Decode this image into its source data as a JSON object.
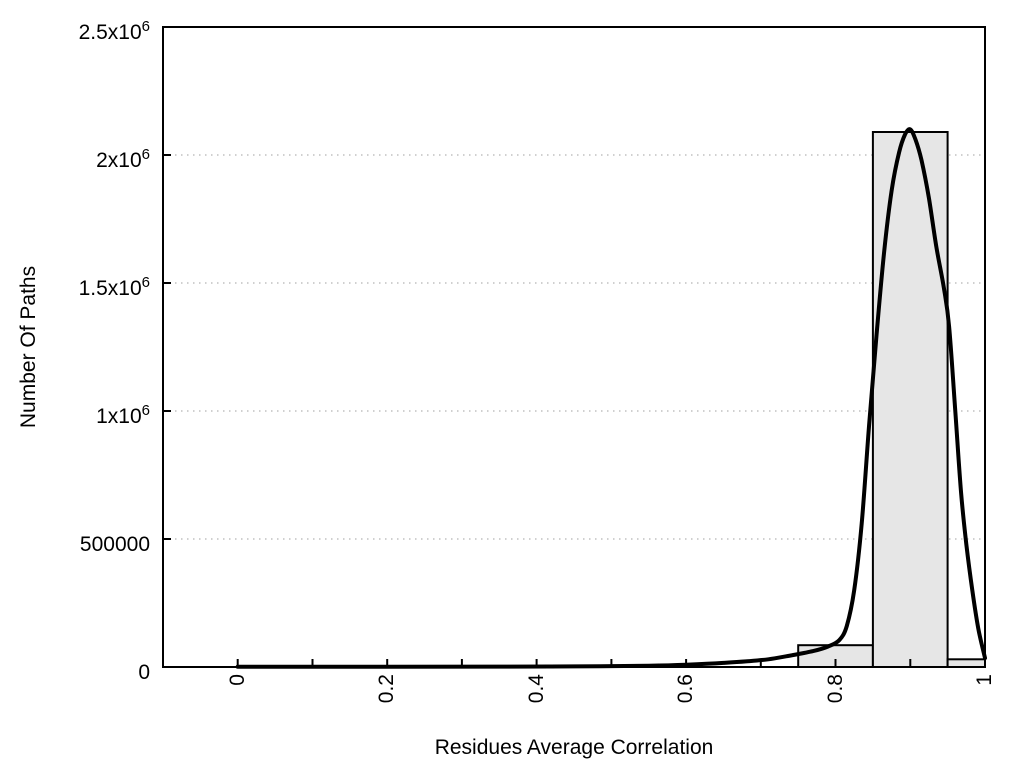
{
  "figure": {
    "background": "#ffffff",
    "axis_color": "#000000",
    "grid_color": "#b3b3b3"
  },
  "chart_data": {
    "type": "bar",
    "subtype": "histogram-with-fit-line",
    "title": "",
    "xlabel": "Residues Average Correlation",
    "ylabel": "Number Of Paths",
    "xlim": [
      -0.1,
      1.0
    ],
    "ylim": [
      0,
      2500000
    ],
    "grid": {
      "axis": "y",
      "style": "dotted"
    },
    "legend": "none",
    "x_ticks": {
      "values": [
        0,
        0.2,
        0.4,
        0.6,
        0.8,
        1
      ],
      "labels": [
        "0",
        "0.2",
        "0.4",
        "0.6",
        "0.8",
        "1"
      ],
      "minor_step": 0.1,
      "label_rotation_deg": -90
    },
    "y_ticks": {
      "values": [
        0,
        500000,
        1000000,
        1500000,
        2000000,
        2500000
      ],
      "labels": [
        {
          "main": "0",
          "sup": ""
        },
        {
          "main": "500000",
          "sup": ""
        },
        {
          "main": "1x10",
          "sup": "6"
        },
        {
          "main": "1.5x10",
          "sup": "6"
        },
        {
          "main": "2x10",
          "sup": "6"
        },
        {
          "main": "2.5x10",
          "sup": "6"
        }
      ]
    },
    "histogram": {
      "fill": "#e6e6e6",
      "border": "#000000",
      "bins": [
        {
          "x_start": 0.75,
          "x_end": 0.85,
          "count": 85000
        },
        {
          "x_start": 0.85,
          "x_end": 0.95,
          "count": 2090000
        },
        {
          "x_start": 0.95,
          "x_end": 1.0,
          "count": 30000
        }
      ]
    },
    "fit_curve": {
      "color": "#000000",
      "width": 4,
      "points": [
        [
          0.0,
          1000
        ],
        [
          0.2,
          1000
        ],
        [
          0.35,
          1500
        ],
        [
          0.45,
          2500
        ],
        [
          0.55,
          5000
        ],
        [
          0.6,
          9000
        ],
        [
          0.65,
          16000
        ],
        [
          0.68,
          22000
        ],
        [
          0.71,
          30000
        ],
        [
          0.74,
          45000
        ],
        [
          0.77,
          62000
        ],
        [
          0.79,
          80000
        ],
        [
          0.805,
          105000
        ],
        [
          0.815,
          160000
        ],
        [
          0.825,
          300000
        ],
        [
          0.835,
          560000
        ],
        [
          0.845,
          950000
        ],
        [
          0.855,
          1300000
        ],
        [
          0.865,
          1620000
        ],
        [
          0.875,
          1860000
        ],
        [
          0.885,
          2010000
        ],
        [
          0.893,
          2080000
        ],
        [
          0.9,
          2100000
        ],
        [
          0.907,
          2060000
        ],
        [
          0.915,
          1980000
        ],
        [
          0.925,
          1830000
        ],
        [
          0.935,
          1640000
        ],
        [
          0.945,
          1480000
        ],
        [
          0.952,
          1330000
        ],
        [
          0.96,
          1010000
        ],
        [
          0.968,
          680000
        ],
        [
          0.975,
          480000
        ],
        [
          0.983,
          300000
        ],
        [
          0.991,
          150000
        ],
        [
          1.0,
          35000
        ]
      ]
    }
  }
}
